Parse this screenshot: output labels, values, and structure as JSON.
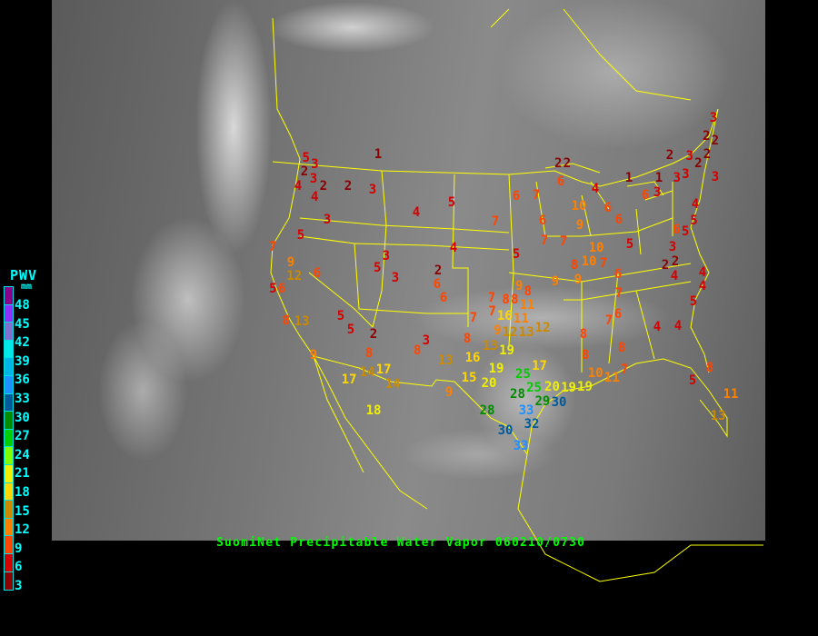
{
  "caption": "SuomiNet Precipitable Water Vapor 060210/0730",
  "legend": {
    "title": "PWV",
    "unit": "mm",
    "labels": [
      "48",
      "45",
      "42",
      "39",
      "36",
      "33",
      "30",
      "27",
      "24",
      "21",
      "18",
      "15",
      "12",
      "9",
      "6",
      "3"
    ],
    "colors": [
      "#8b008b",
      "#9030ff",
      "#8070d0",
      "#00e8e8",
      "#00b4e6",
      "#1e90ff",
      "#005a9a",
      "#008b00",
      "#00cc00",
      "#80ff00",
      "#f0f000",
      "#ffd700",
      "#cc8a00",
      "#ff8000",
      "#ff4500",
      "#d40000",
      "#8b0000"
    ]
  },
  "stations": [
    "1",
    "5",
    "3",
    "2",
    "3",
    "4",
    "2",
    "2",
    "3",
    "4",
    "4",
    "5",
    "3",
    "5",
    "7",
    "9",
    "12",
    "6",
    "5",
    "3",
    "5",
    "3",
    "2",
    "6",
    "6",
    "4",
    "6",
    "7",
    "7",
    "6",
    "5",
    "7",
    "7",
    "2",
    "6",
    "2",
    "4",
    "10",
    "6",
    "6",
    "1",
    "1",
    "6",
    "3",
    "9",
    "10",
    "10",
    "7",
    "8",
    "9",
    "9",
    "5",
    "6",
    "3",
    "2",
    "3",
    "2",
    "2",
    "3",
    "2",
    "2",
    "3",
    "3",
    "4",
    "6",
    "5",
    "5",
    "3",
    "2",
    "2",
    "4",
    "4",
    "4",
    "5",
    "7",
    "6",
    "7",
    "8",
    "8",
    "8",
    "4",
    "4",
    "5",
    "8",
    "11",
    "13",
    "7",
    "10",
    "11",
    "19",
    "19",
    "9",
    "8",
    "7",
    "8",
    "8",
    "7",
    "16",
    "11",
    "11",
    "7",
    "9",
    "12",
    "13",
    "12",
    "8",
    "13",
    "19",
    "16",
    "19",
    "17",
    "15",
    "20",
    "25",
    "28",
    "25",
    "29",
    "20",
    "30",
    "28",
    "33",
    "32",
    "30",
    "33",
    "9",
    "8",
    "17",
    "14",
    "17",
    "14",
    "18",
    "13",
    "9",
    "8",
    "3",
    "2",
    "5",
    "5",
    "8",
    "13",
    "6"
  ]
}
